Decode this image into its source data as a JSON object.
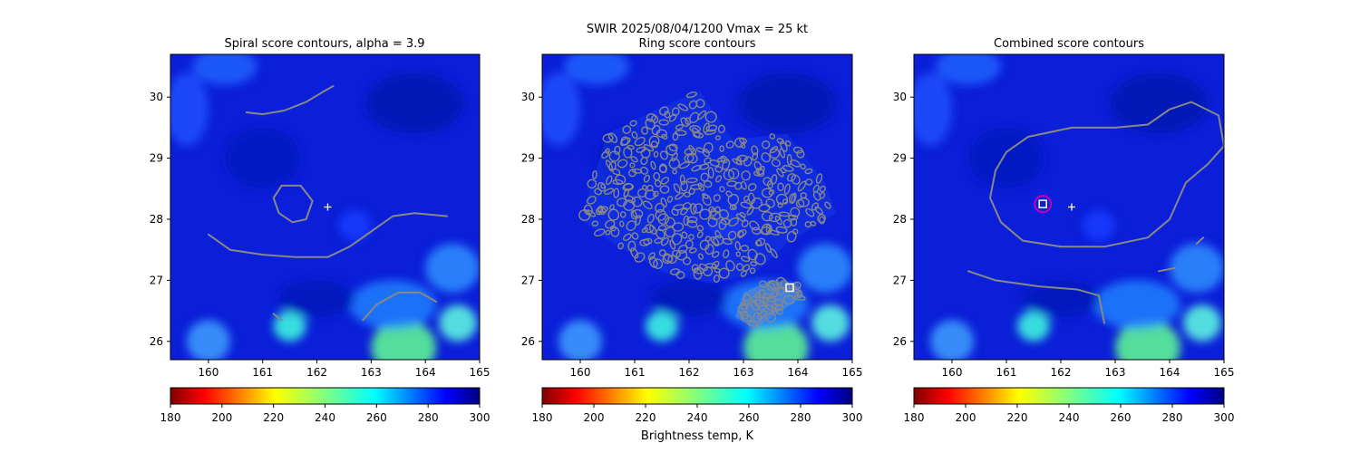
{
  "figure": {
    "suptitle_line1": "SWIR  2025/08/04/1200    Vmax = 25 kt",
    "colorbar_label": "Brightness temp, K"
  },
  "chart_data": [
    {
      "type": "heatmap",
      "title": "Spiral score contours, alpha =  3.9",
      "xlim": [
        159.3,
        165.0
      ],
      "ylim": [
        25.7,
        30.7
      ],
      "xticks": [
        "160",
        "161",
        "162",
        "163",
        "164",
        "165"
      ],
      "yticks": [
        "26",
        "27",
        "28",
        "29",
        "30"
      ],
      "center_marker": {
        "x": 162.2,
        "y": 28.2
      },
      "contours": [
        [
          [
            160.7,
            29.75
          ],
          [
            161.0,
            29.72
          ],
          [
            161.4,
            29.78
          ],
          [
            161.8,
            29.92
          ],
          [
            162.1,
            30.08
          ],
          [
            162.3,
            30.18
          ]
        ],
        [
          [
            161.35,
            28.55
          ],
          [
            161.7,
            28.55
          ],
          [
            161.92,
            28.3
          ],
          [
            161.8,
            28.0
          ],
          [
            161.55,
            27.95
          ],
          [
            161.3,
            28.1
          ],
          [
            161.2,
            28.35
          ],
          [
            161.35,
            28.55
          ]
        ],
        [
          [
            160.0,
            27.75
          ],
          [
            160.4,
            27.5
          ],
          [
            161.0,
            27.42
          ],
          [
            161.6,
            27.38
          ],
          [
            162.2,
            27.38
          ],
          [
            162.6,
            27.55
          ],
          [
            163.0,
            27.8
          ],
          [
            163.4,
            28.05
          ],
          [
            163.8,
            28.1
          ],
          [
            164.4,
            28.05
          ]
        ],
        [
          [
            162.85,
            26.35
          ],
          [
            163.1,
            26.6
          ],
          [
            163.5,
            26.8
          ],
          [
            163.9,
            26.8
          ],
          [
            164.2,
            26.65
          ]
        ],
        [
          [
            161.2,
            26.45
          ],
          [
            161.35,
            26.35
          ]
        ]
      ]
    },
    {
      "type": "heatmap",
      "title": "Ring score contours",
      "xlim": [
        159.3,
        165.0
      ],
      "ylim": [
        25.7,
        30.7
      ],
      "xticks": [
        "160",
        "161",
        "162",
        "163",
        "164",
        "165"
      ],
      "yticks": [
        "26",
        "27",
        "28",
        "29",
        "30"
      ],
      "square_marker": {
        "x": 163.85,
        "y": 26.88
      },
      "ring_region": [
        [
          160.0,
          28.0
        ],
        [
          160.5,
          29.4
        ],
        [
          161.4,
          29.8
        ],
        [
          162.2,
          30.1
        ],
        [
          162.8,
          29.3
        ],
        [
          163.8,
          29.4
        ],
        [
          164.5,
          28.6
        ],
        [
          164.7,
          28.1
        ],
        [
          163.8,
          27.6
        ],
        [
          163.2,
          27.1
        ],
        [
          162.4,
          26.95
        ],
        [
          161.6,
          27.1
        ],
        [
          160.6,
          27.6
        ]
      ],
      "ring_region2": [
        [
          162.85,
          26.4
        ],
        [
          163.0,
          26.8
        ],
        [
          163.5,
          27.0
        ],
        [
          164.0,
          26.95
        ],
        [
          164.1,
          26.75
        ],
        [
          163.7,
          26.5
        ],
        [
          163.2,
          26.2
        ]
      ]
    },
    {
      "type": "heatmap",
      "title": "Combined score contours",
      "xlim": [
        159.3,
        165.0
      ],
      "ylim": [
        25.7,
        30.7
      ],
      "xticks": [
        "160",
        "161",
        "162",
        "163",
        "164",
        "165"
      ],
      "yticks": [
        "26",
        "27",
        "28",
        "29",
        "30"
      ],
      "center_marker": {
        "x": 162.2,
        "y": 28.2
      },
      "square_marker": {
        "x": 161.67,
        "y": 28.25
      },
      "circle_marker": {
        "x": 161.67,
        "y": 28.25
      },
      "contours": [
        [
          [
            160.8,
            28.8
          ],
          [
            161.0,
            29.1
          ],
          [
            161.4,
            29.35
          ],
          [
            162.2,
            29.5
          ],
          [
            163.0,
            29.5
          ],
          [
            163.6,
            29.55
          ],
          [
            164.0,
            29.8
          ],
          [
            164.4,
            29.92
          ],
          [
            164.9,
            29.7
          ],
          [
            165.0,
            29.2
          ],
          [
            164.7,
            28.9
          ],
          [
            164.3,
            28.6
          ],
          [
            164.0,
            28.0
          ],
          [
            163.6,
            27.7
          ],
          [
            162.8,
            27.55
          ],
          [
            162.0,
            27.55
          ],
          [
            161.3,
            27.65
          ],
          [
            160.9,
            27.95
          ],
          [
            160.7,
            28.35
          ],
          [
            160.8,
            28.8
          ]
        ],
        [
          [
            160.3,
            27.15
          ],
          [
            160.8,
            27.0
          ],
          [
            161.6,
            26.9
          ],
          [
            162.3,
            26.85
          ],
          [
            162.7,
            26.75
          ],
          [
            162.8,
            26.3
          ]
        ],
        [
          [
            163.8,
            27.15
          ],
          [
            164.1,
            27.2
          ]
        ],
        [
          [
            164.5,
            27.6
          ],
          [
            164.62,
            27.7
          ]
        ]
      ]
    }
  ],
  "colorbar": {
    "type": "colorbar",
    "range": [
      180,
      300
    ],
    "ticks": [
      "180",
      "200",
      "220",
      "240",
      "260",
      "280",
      "300"
    ],
    "colormap": "jet_reversed"
  },
  "colors": {
    "contour": "#888888",
    "marker": "#ffffff",
    "circle": "#c000c0"
  }
}
